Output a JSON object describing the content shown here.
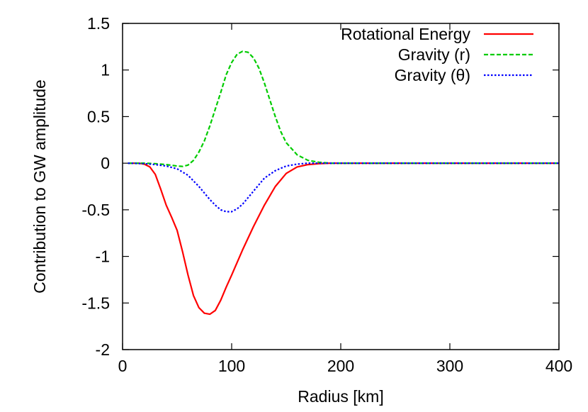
{
  "chart_data": {
    "type": "line",
    "title": "",
    "xlabel": "Radius [km]",
    "ylabel": "Contribution to GW amplitude",
    "xlim": [
      0,
      400
    ],
    "ylim": [
      -2,
      1.5
    ],
    "x_ticks": [
      0,
      100,
      200,
      300,
      400
    ],
    "x_tick_labels": [
      "0",
      "100",
      "200",
      "300",
      "400"
    ],
    "y_ticks": [
      -2,
      -1.5,
      -1,
      -0.5,
      0,
      0.5,
      1,
      1.5
    ],
    "y_tick_labels": [
      "-2",
      "-1.5",
      "-1",
      "-0.5",
      "0",
      "0.5",
      "1",
      "1.5"
    ],
    "grid": false,
    "legend_position": "top-right",
    "series": [
      {
        "name": "Rotational Energy",
        "color": "#ff0000",
        "dash": "solid",
        "x": [
          5,
          15,
          20,
          25,
          30,
          35,
          40,
          45,
          50,
          55,
          60,
          65,
          70,
          75,
          80,
          85,
          90,
          95,
          100,
          110,
          120,
          130,
          140,
          150,
          160,
          170,
          180,
          190,
          200,
          250,
          300,
          350,
          400
        ],
        "y": [
          0,
          0,
          -0.01,
          -0.04,
          -0.12,
          -0.28,
          -0.45,
          -0.58,
          -0.72,
          -0.95,
          -1.2,
          -1.42,
          -1.55,
          -1.61,
          -1.62,
          -1.58,
          -1.47,
          -1.33,
          -1.2,
          -0.93,
          -0.68,
          -0.45,
          -0.25,
          -0.11,
          -0.04,
          -0.015,
          -0.005,
          0,
          0,
          0,
          0,
          0,
          0
        ]
      },
      {
        "name": "Gravity (r)",
        "color": "#00cc00",
        "dash": "dashed",
        "x": [
          5,
          20,
          30,
          40,
          50,
          55,
          60,
          65,
          70,
          75,
          80,
          85,
          90,
          95,
          100,
          105,
          110,
          115,
          120,
          125,
          130,
          135,
          140,
          145,
          150,
          160,
          170,
          180,
          190,
          200,
          250,
          300,
          350,
          400
        ],
        "y": [
          0,
          0,
          -0.005,
          -0.015,
          -0.03,
          -0.035,
          -0.02,
          0.03,
          0.12,
          0.24,
          0.4,
          0.58,
          0.76,
          0.95,
          1.08,
          1.17,
          1.2,
          1.19,
          1.13,
          1.02,
          0.86,
          0.68,
          0.5,
          0.34,
          0.22,
          0.09,
          0.03,
          0.01,
          0,
          0,
          0,
          0,
          0,
          0
        ]
      },
      {
        "name": "Gravity (θ)",
        "color": "#0000ff",
        "dash": "dotted",
        "x": [
          5,
          20,
          30,
          40,
          50,
          60,
          70,
          75,
          80,
          85,
          90,
          95,
          100,
          105,
          110,
          115,
          120,
          125,
          130,
          140,
          150,
          160,
          170,
          180,
          190,
          200,
          250,
          300,
          350,
          400
        ],
        "y": [
          0,
          -0.005,
          -0.015,
          -0.03,
          -0.06,
          -0.13,
          -0.25,
          -0.32,
          -0.39,
          -0.45,
          -0.5,
          -0.52,
          -0.52,
          -0.49,
          -0.44,
          -0.37,
          -0.3,
          -0.23,
          -0.16,
          -0.08,
          -0.03,
          -0.01,
          0,
          0,
          0,
          0,
          0,
          0,
          0,
          0
        ]
      }
    ]
  }
}
